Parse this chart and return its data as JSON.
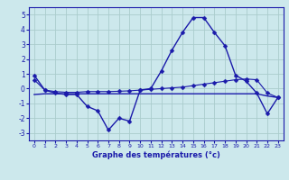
{
  "xlabel": "Graphe des températures (°c)",
  "x": [
    0,
    1,
    2,
    3,
    4,
    5,
    6,
    7,
    8,
    9,
    10,
    11,
    12,
    13,
    14,
    15,
    16,
    17,
    18,
    19,
    20,
    21,
    22,
    23
  ],
  "y_main": [
    0.9,
    -0.1,
    -0.3,
    -0.4,
    -0.4,
    -1.2,
    -1.5,
    -2.8,
    -2.0,
    -2.2,
    -0.1,
    0.0,
    1.2,
    2.6,
    3.8,
    4.8,
    4.8,
    3.8,
    2.9,
    0.9,
    0.5,
    -0.3,
    -1.7,
    -0.6
  ],
  "y_line1": [
    0.6,
    -0.1,
    -0.2,
    -0.25,
    -0.25,
    -0.2,
    -0.2,
    -0.2,
    -0.18,
    -0.15,
    -0.1,
    -0.05,
    0.0,
    0.05,
    0.1,
    0.2,
    0.3,
    0.4,
    0.5,
    0.6,
    0.65,
    0.6,
    -0.3,
    -0.6
  ],
  "y_line2": [
    -0.4,
    -0.35,
    -0.35,
    -0.35,
    -0.35,
    -0.35,
    -0.35,
    -0.35,
    -0.35,
    -0.35,
    -0.35,
    -0.35,
    -0.35,
    -0.35,
    -0.35,
    -0.35,
    -0.35,
    -0.35,
    -0.35,
    -0.35,
    -0.35,
    -0.35,
    -0.5,
    -0.6
  ],
  "bg_color": "#cce8ec",
  "grid_color": "#aacccc",
  "line_color": "#1a1aaa",
  "marker": "D",
  "marker_size": 2.5,
  "ylim": [
    -3.5,
    5.5
  ],
  "xlim": [
    -0.5,
    23.5
  ],
  "yticks": [
    -3,
    -2,
    -1,
    0,
    1,
    2,
    3,
    4,
    5
  ],
  "xticks": [
    0,
    1,
    2,
    3,
    4,
    5,
    6,
    7,
    8,
    9,
    10,
    11,
    12,
    13,
    14,
    15,
    16,
    17,
    18,
    19,
    20,
    21,
    22,
    23
  ]
}
